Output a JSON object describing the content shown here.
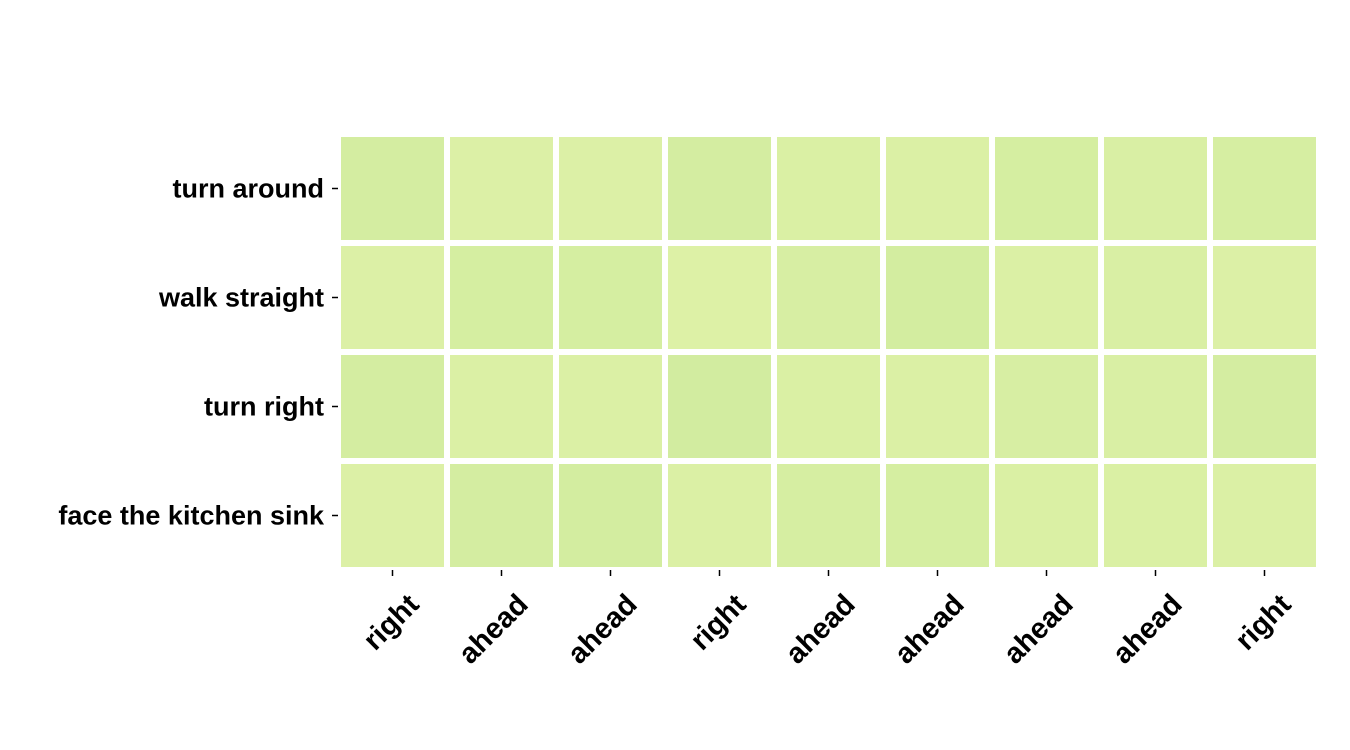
{
  "chart_data": {
    "type": "heatmap",
    "title": "",
    "xlabel": "",
    "ylabel": "",
    "rows": [
      "turn around",
      "walk straight",
      "turn right",
      "face the kitchen sink"
    ],
    "columns": [
      "right",
      "ahead",
      "ahead",
      "right",
      "ahead",
      "ahead",
      "ahead",
      "ahead",
      "right"
    ],
    "values": [
      [
        0.6,
        0.2,
        0.2,
        0.6,
        0.3,
        0.25,
        0.55,
        0.35,
        0.5
      ],
      [
        0.2,
        0.55,
        0.55,
        0.15,
        0.45,
        0.65,
        0.25,
        0.35,
        0.2
      ],
      [
        0.6,
        0.25,
        0.25,
        0.7,
        0.3,
        0.25,
        0.45,
        0.35,
        0.6
      ],
      [
        0.2,
        0.6,
        0.65,
        0.25,
        0.5,
        0.55,
        0.3,
        0.3,
        0.25
      ]
    ],
    "colormap": [
      "#e0f2a8",
      "#ccea9c"
    ],
    "grid": false,
    "legend": "none"
  }
}
